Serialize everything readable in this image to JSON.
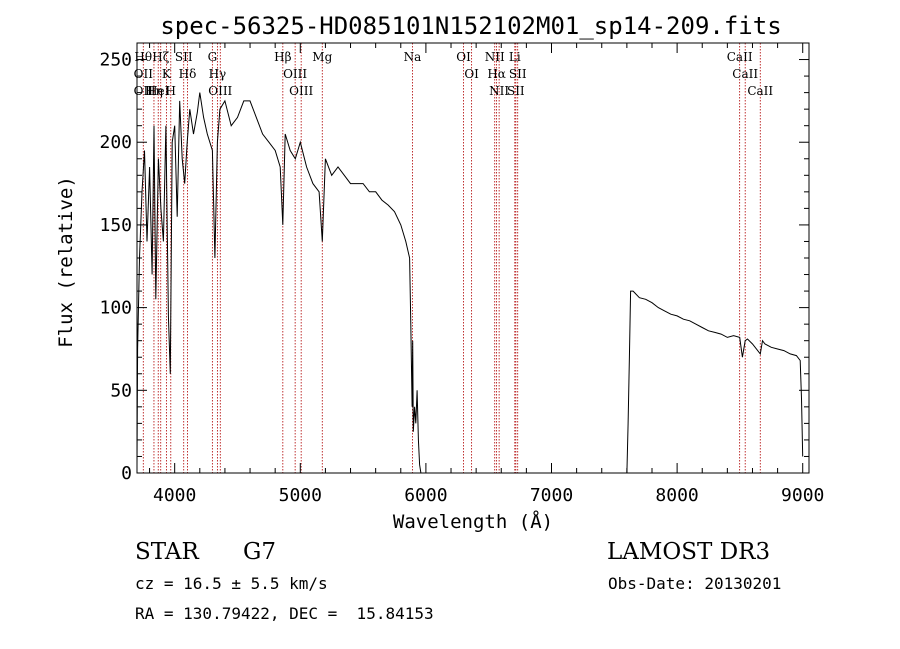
{
  "chart_data": {
    "type": "line",
    "title": "spec-56325-HD085101N152102M01_sp14-209.fits",
    "xlabel": "Wavelength (Å)",
    "ylabel": "Flux (relative)",
    "xlim": [
      3700,
      9050
    ],
    "ylim": [
      0,
      260
    ],
    "xticks": [
      4000,
      5000,
      6000,
      7000,
      8000,
      9000
    ],
    "yticks": [
      0,
      50,
      100,
      150,
      200,
      250
    ],
    "grid": false,
    "series": [
      {
        "x": [
          3700,
          3705,
          3720,
          3740,
          3760,
          3780,
          3800,
          3820,
          3835,
          3850,
          3870,
          3890,
          3910,
          3930,
          3950,
          3965,
          3980,
          4000,
          4020,
          4040,
          4060,
          4080,
          4100,
          4120,
          4150,
          4180,
          4200,
          4230,
          4260,
          4300,
          4320,
          4340,
          4360,
          4400,
          4450,
          4500,
          4550,
          4600,
          4650,
          4700,
          4750,
          4800,
          4840,
          4861,
          4880,
          4920,
          4960,
          5000,
          5050,
          5100,
          5150,
          5175,
          5200,
          5250,
          5300,
          5350,
          5400,
          5450,
          5500,
          5550,
          5600,
          5650,
          5700,
          5750,
          5800,
          5840,
          5870,
          5880,
          5890,
          5895,
          5900,
          5910,
          5920,
          5930,
          5940,
          5950,
          5960,
          5980,
          6000,
          6100,
          6200,
          6300,
          6400,
          6500,
          6600,
          6700,
          6800,
          6900,
          7000,
          7100,
          7200,
          7300,
          7400,
          7500,
          7550,
          7590,
          7600,
          7610,
          7620,
          7630,
          7650,
          7700,
          7750,
          7800,
          7850,
          7900,
          7950,
          8000,
          8050,
          8100,
          8150,
          8200,
          8250,
          8300,
          8350,
          8400,
          8450,
          8498,
          8520,
          8542,
          8560,
          8600,
          8662,
          8680,
          8700,
          8750,
          8800,
          8850,
          8900,
          8950,
          8980,
          8990,
          9000
        ],
        "y": [
          5,
          75,
          130,
          170,
          195,
          140,
          185,
          120,
          210,
          105,
          190,
          160,
          140,
          210,
          95,
          60,
          200,
          210,
          155,
          225,
          190,
          175,
          200,
          220,
          205,
          218,
          230,
          215,
          205,
          195,
          130,
          200,
          220,
          225,
          210,
          215,
          225,
          225,
          215,
          205,
          200,
          195,
          185,
          150,
          205,
          195,
          190,
          200,
          185,
          175,
          170,
          140,
          190,
          180,
          185,
          180,
          175,
          175,
          175,
          170,
          170,
          165,
          162,
          158,
          150,
          140,
          130,
          90,
          40,
          80,
          25,
          40,
          30,
          50,
          20,
          5,
          0,
          0,
          0,
          0,
          0,
          0,
          0,
          0,
          0,
          0,
          0,
          0,
          0,
          0,
          0,
          0,
          0,
          0,
          0,
          0,
          0,
          30,
          70,
          110,
          110,
          106,
          105,
          103,
          100,
          98,
          96,
          95,
          93,
          92,
          90,
          88,
          86,
          85,
          84,
          82,
          83,
          82,
          70,
          80,
          81,
          78,
          72,
          80,
          78,
          76,
          75,
          74,
          72,
          71,
          68,
          45,
          10
        ]
      }
    ],
    "line_markers": [
      {
        "wl": 3750,
        "labels": [
          "Hθ",
          "OII",
          "OII"
        ]
      },
      {
        "wl": 3835,
        "labels": [
          "Hη"
        ]
      },
      {
        "wl": 3869,
        "labels": [
          "HeI"
        ]
      },
      {
        "wl": 3889,
        "labels": [
          "Hζ"
        ]
      },
      {
        "wl": 3934,
        "labels": [
          "K"
        ]
      },
      {
        "wl": 3969,
        "labels": [
          "H"
        ]
      },
      {
        "wl": 4072,
        "labels": [
          "SII"
        ]
      },
      {
        "wl": 4102,
        "labels": [
          "Hδ"
        ]
      },
      {
        "wl": 4300,
        "labels": [
          "G"
        ]
      },
      {
        "wl": 4340,
        "labels": [
          "Hγ"
        ]
      },
      {
        "wl": 4363,
        "labels": [
          "OIII"
        ]
      },
      {
        "wl": 4861,
        "labels": [
          "Hβ"
        ]
      },
      {
        "wl": 4959,
        "labels": [
          "OIII"
        ]
      },
      {
        "wl": 5007,
        "labels": [
          "OIII"
        ]
      },
      {
        "wl": 5175,
        "labels": [
          "Mg"
        ]
      },
      {
        "wl": 5893,
        "labels": [
          "Na"
        ]
      },
      {
        "wl": 6300,
        "labels": [
          "OI"
        ]
      },
      {
        "wl": 6364,
        "labels": [
          "OI"
        ]
      },
      {
        "wl": 6548,
        "labels": [
          "NII"
        ]
      },
      {
        "wl": 6563,
        "labels": [
          "Hα"
        ]
      },
      {
        "wl": 6583,
        "labels": [
          "NII"
        ]
      },
      {
        "wl": 6708,
        "labels": [
          "Li"
        ]
      },
      {
        "wl": 6716,
        "labels": [
          "SII"
        ]
      },
      {
        "wl": 6731,
        "labels": [
          "SII"
        ]
      },
      {
        "wl": 8498,
        "labels": [
          "CaII"
        ]
      },
      {
        "wl": 8542,
        "labels": [
          "CaII"
        ]
      },
      {
        "wl": 8662,
        "labels": [
          "CaII"
        ]
      }
    ],
    "line_color": "#000000",
    "marker_color": "#b00000"
  },
  "info": {
    "object_class": "STAR",
    "subclass": "G7",
    "survey": "LAMOST DR3",
    "cz": "cz = 16.5 ± 5.5 km/s",
    "obs_date": "Obs-Date: 20130201",
    "coords": "RA = 130.79422, DEC =  15.84153"
  }
}
